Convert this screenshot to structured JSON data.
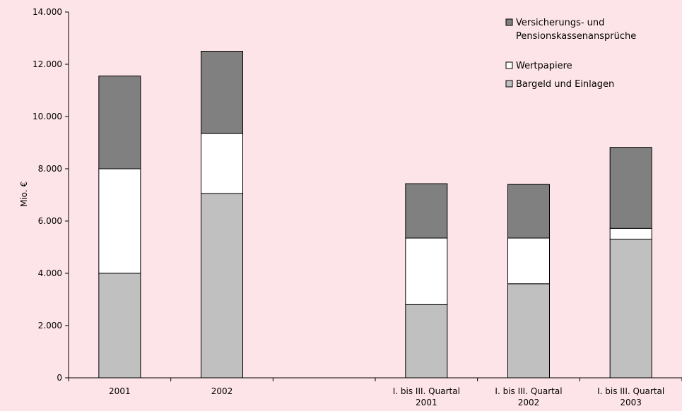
{
  "chart_data": {
    "type": "bar",
    "stacked": true,
    "ylabel": "Mio. €",
    "ylim": [
      0,
      14000
    ],
    "yticks": [
      "0",
      "2.000",
      "4.000",
      "6.000",
      "8.000",
      "10.000",
      "12.000",
      "14.000"
    ],
    "ytick_values": [
      0,
      2000,
      4000,
      6000,
      8000,
      10000,
      12000,
      14000
    ],
    "categories": [
      [
        "2001"
      ],
      [
        "2002"
      ],
      [
        ""
      ],
      [
        "I. bis III. Quartal",
        "2001"
      ],
      [
        "I. bis III. Quartal",
        "2002"
      ],
      [
        "I. bis III. Quartal",
        "2003"
      ]
    ],
    "series": [
      {
        "name": "Bargeld und Einlagen",
        "color": "#c0c0c0",
        "values": [
          4000,
          7050,
          null,
          2800,
          3600,
          5300
        ]
      },
      {
        "name": "Wertpapiere",
        "color": "#ffffff",
        "values": [
          4000,
          2300,
          null,
          2550,
          1750,
          420
        ]
      },
      {
        "name": "Versicherungs- und Pensionskassenansprüche",
        "color": "#808080",
        "values": [
          3550,
          3150,
          null,
          2080,
          2050,
          3100
        ]
      }
    ],
    "legend": {
      "position": "top-right",
      "entries": [
        {
          "lines": [
            "Versicherungs- und",
            "Pensionskassenansprüche"
          ],
          "color": "#808080"
        },
        {
          "lines": [
            "Wertpapiere"
          ],
          "color": "#ffffff"
        },
        {
          "lines": [
            "Bargeld und Einlagen"
          ],
          "color": "#c0c0c0"
        }
      ]
    },
    "grid": false
  }
}
